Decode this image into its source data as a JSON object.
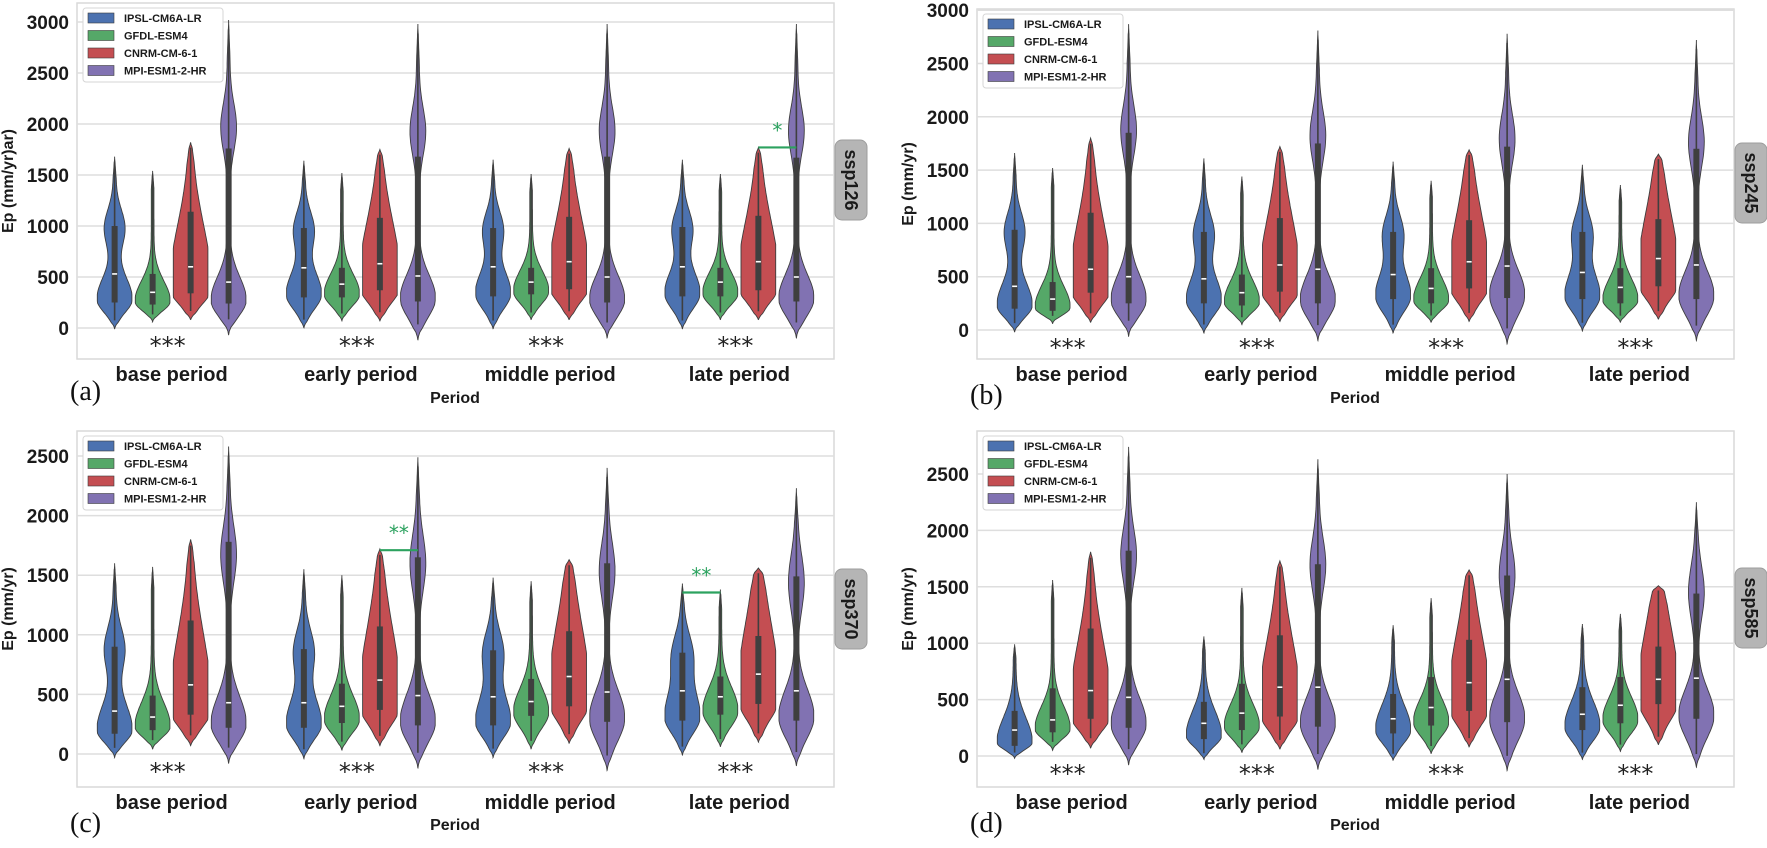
{
  "chart_data": {
    "type": "violin",
    "legend": [
      "IPSL-CM6A-LR",
      "GFDL-ESM4",
      "CNRM-CM-6-1",
      "MPI-ESM1-2-HR"
    ],
    "legend_placement": "top-left",
    "colors": [
      "#4c72b0",
      "#55a868",
      "#c44e52",
      "#8172b2"
    ],
    "significance_color": "#2ca25f",
    "categories": [
      "base period",
      "early period",
      "middle period",
      "late period"
    ],
    "xlabel": "Period",
    "stats_order": [
      "min",
      "max",
      "q1",
      "median",
      "q3"
    ],
    "panels": [
      {
        "letter": "(a)",
        "facet": "ssp126",
        "ylabel": "Ep (mm/yr)ar)",
        "ylim": [
          -320,
          3200
        ],
        "yticks": [
          "0",
          "500",
          "1000",
          "1500",
          "2000",
          "2500",
          "3000"
        ],
        "group_marks": [
          "***",
          "***",
          "***",
          "***"
        ],
        "brackets": [
          {
            "period": 3,
            "from": 2,
            "to": 3,
            "value": 1770,
            "label": "*"
          }
        ],
        "violins": [
          [
            [
              -10,
              1680,
              250,
              530,
              1000
            ],
            [
              60,
              1540,
              230,
              350,
              530
            ],
            [
              80,
              1820,
              340,
              600,
              1140
            ],
            [
              -70,
              3020,
              240,
              450,
              1760
            ]
          ],
          [
            [
              0,
              1640,
              300,
              590,
              980
            ],
            [
              70,
              1520,
              300,
              430,
              590
            ],
            [
              70,
              1750,
              370,
              630,
              1080
            ],
            [
              -120,
              2980,
              260,
              510,
              1680
            ]
          ],
          [
            [
              -10,
              1650,
              310,
              600,
              980
            ],
            [
              80,
              1510,
              330,
              450,
              590
            ],
            [
              80,
              1760,
              380,
              650,
              1090
            ],
            [
              -100,
              2980,
              250,
              500,
              1680
            ]
          ],
          [
            [
              -10,
              1650,
              310,
              600,
              990
            ],
            [
              80,
              1510,
              310,
              450,
              590
            ],
            [
              80,
              1770,
              370,
              650,
              1100
            ],
            [
              -100,
              2980,
              260,
              500,
              1670
            ]
          ]
        ]
      },
      {
        "letter": "(b)",
        "facet": "ssp245",
        "ylabel": "Ep (mm/yr)",
        "ylim": [
          -270,
          3050
        ],
        "yticks": [
          "0",
          "500",
          "1000",
          "1500",
          "2000",
          "2500",
          "3000"
        ],
        "group_marks": [
          "***",
          "***",
          "***",
          "***"
        ],
        "brackets": [],
        "violins": [
          [
            [
              -20,
              1660,
              200,
              410,
              940
            ],
            [
              60,
              1520,
              180,
              290,
              450
            ],
            [
              70,
              1800,
              350,
              570,
              1100
            ],
            [
              -60,
              2870,
              250,
              500,
              1850
            ]
          ],
          [
            [
              -30,
              1610,
              250,
              480,
              920
            ],
            [
              50,
              1440,
              230,
              350,
              520
            ],
            [
              80,
              1720,
              360,
              610,
              1050
            ],
            [
              -100,
              2810,
              250,
              570,
              1750
            ]
          ],
          [
            [
              -30,
              1580,
              290,
              520,
              920
            ],
            [
              70,
              1400,
              250,
              390,
              580
            ],
            [
              80,
              1690,
              390,
              640,
              1030
            ],
            [
              -130,
              2780,
              300,
              600,
              1720
            ]
          ],
          [
            [
              -10,
              1550,
              290,
              540,
              920
            ],
            [
              70,
              1360,
              250,
              400,
              580
            ],
            [
              100,
              1650,
              410,
              670,
              1040
            ],
            [
              -100,
              2720,
              290,
              610,
              1700
            ]
          ]
        ]
      },
      {
        "letter": "(c)",
        "facet": "ssp370",
        "ylabel": "Ep (mm/yr)",
        "ylim": [
          -280,
          2700
        ],
        "yticks": [
          "0",
          "500",
          "1000",
          "1500",
          "2000",
          "2500"
        ],
        "group_marks": [
          "***",
          "***",
          "***",
          "***"
        ],
        "brackets": [
          {
            "period": 1,
            "from": 2,
            "to": 3,
            "value": 1710,
            "label": "**"
          },
          {
            "period": 3,
            "from": 0,
            "to": 1,
            "value": 1355,
            "label": "**"
          }
        ],
        "violins": [
          [
            [
              -30,
              1600,
              170,
              360,
              900
            ],
            [
              40,
              1570,
              200,
              310,
              490
            ],
            [
              70,
              1800,
              330,
              580,
              1120
            ],
            [
              -80,
              2580,
              220,
              430,
              1780
            ]
          ],
          [
            [
              -40,
              1550,
              220,
              430,
              880
            ],
            [
              30,
              1500,
              260,
              400,
              590
            ],
            [
              70,
              1720,
              370,
              620,
              1070
            ],
            [
              -120,
              2490,
              240,
              490,
              1650
            ]
          ],
          [
            [
              -30,
              1480,
              240,
              480,
              870
            ],
            [
              40,
              1450,
              320,
              440,
              630
            ],
            [
              90,
              1630,
              400,
              650,
              1030
            ],
            [
              -140,
              2400,
              270,
              520,
              1600
            ]
          ],
          [
            [
              -10,
              1430,
              280,
              530,
              850
            ],
            [
              60,
              1380,
              330,
              480,
              650
            ],
            [
              100,
              1560,
              420,
              670,
              990
            ],
            [
              -100,
              2230,
              280,
              530,
              1490
            ]
          ]
        ]
      },
      {
        "letter": "(d)",
        "facet": "ssp585",
        "ylabel": "Ep (mm/yr)",
        "ylim": [
          -280,
          2880
        ],
        "yticks": [
          "0",
          "500",
          "1000",
          "1500",
          "2000",
          "2500"
        ],
        "group_marks": [
          "***",
          "***",
          "***",
          "***"
        ],
        "brackets": [],
        "violins": [
          [
            [
              -20,
              990,
              90,
              230,
              400
            ],
            [
              50,
              1560,
              210,
              320,
              600
            ],
            [
              70,
              1810,
              330,
              580,
              1130
            ],
            [
              -80,
              2740,
              250,
              520,
              1820
            ]
          ],
          [
            [
              -30,
              1060,
              150,
              290,
              480
            ],
            [
              30,
              1490,
              230,
              380,
              640
            ],
            [
              60,
              1730,
              350,
              610,
              1070
            ],
            [
              -120,
              2630,
              260,
              610,
              1700
            ]
          ],
          [
            [
              -40,
              1160,
              200,
              330,
              550
            ],
            [
              20,
              1400,
              270,
              430,
              700
            ],
            [
              80,
              1650,
              400,
              650,
              1030
            ],
            [
              -130,
              2500,
              300,
              680,
              1600
            ]
          ],
          [
            [
              -30,
              1170,
              230,
              370,
              610
            ],
            [
              40,
              1260,
              290,
              450,
              700
            ],
            [
              100,
              1510,
              460,
              680,
              970
            ],
            [
              -100,
              2250,
              330,
              690,
              1440
            ]
          ]
        ]
      }
    ]
  }
}
